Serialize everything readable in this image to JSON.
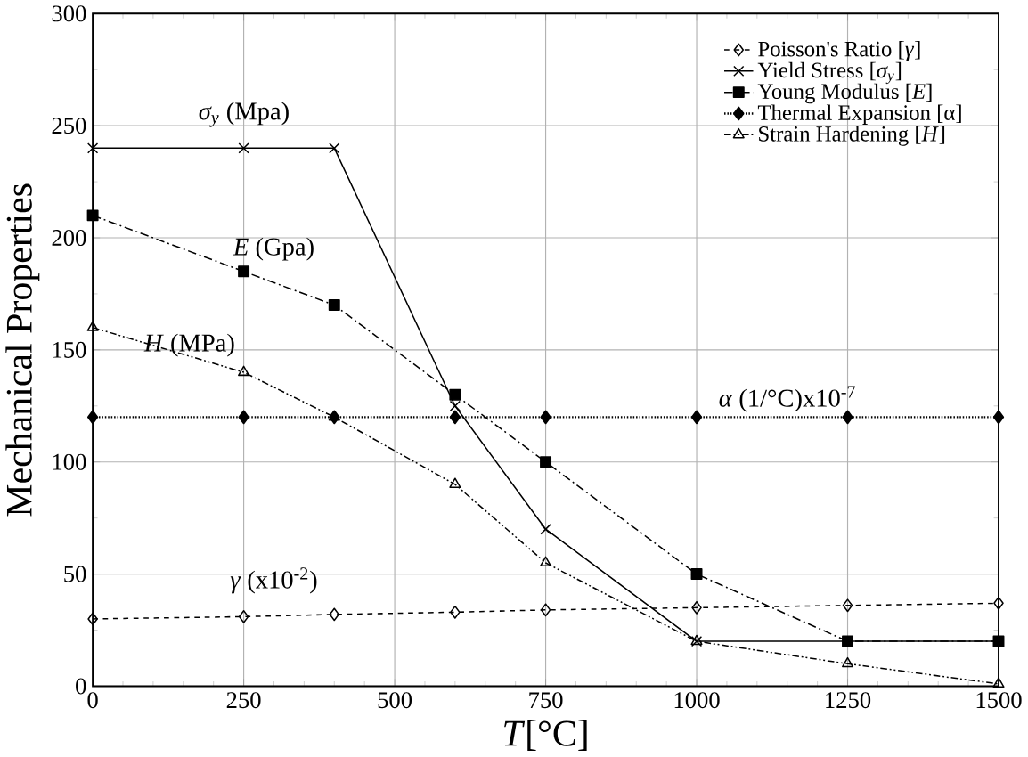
{
  "chart_data": {
    "type": "line",
    "xlabel": "*T*[°C]",
    "ylabel": "Mechanical Properties",
    "x": [
      0,
      250,
      400,
      600,
      750,
      1000,
      1250,
      1500
    ],
    "series": [
      {
        "name": "Poisson's Ratio [*γ*]",
        "color": "#000000",
        "marker": "diamond",
        "line_style": "dashed",
        "values": [
          30,
          31,
          32,
          33,
          34,
          35,
          36,
          37
        ]
      },
      {
        "name": "Yield Stress [*σ$_{y}$*]",
        "color": "#000000",
        "marker": "cross",
        "line_style": "solid",
        "values": [
          240,
          240,
          240,
          125,
          70,
          20,
          20,
          20
        ]
      },
      {
        "name": "Young Modulus [*E*]",
        "color": "#000000",
        "marker": "square",
        "line_style": "dashdot",
        "values": [
          210,
          185,
          170,
          130,
          100,
          50,
          20,
          20
        ]
      },
      {
        "name": "Thermal Expansion [α]",
        "color": "#000000",
        "marker": "diamond_filled",
        "line_style": "dotted",
        "values": [
          120,
          120,
          120,
          120,
          120,
          120,
          120,
          120
        ]
      },
      {
        "name": "Strain Hardening [*H*]",
        "color": "#000000",
        "marker": "triangle",
        "line_style": "dashdotdot",
        "values": [
          160,
          140,
          120,
          90,
          55,
          20,
          10,
          1
        ]
      }
    ],
    "annotations": [
      "*σ$_{y}$* (Mpa)",
      "*E* (Gpa)",
      "*H* (MPa)",
      "*α* (1/°C)x10$^{-7}$",
      "*γ* (x10$^{-2}$)"
    ],
    "xlim": [
      0,
      1500
    ],
    "xticks": [
      0,
      250,
      500,
      750,
      1000,
      1250,
      1500
    ],
    "ylim": [
      0,
      300
    ],
    "yticks": [
      0,
      50,
      100,
      150,
      200,
      250,
      300
    ],
    "grid": true,
    "legend": "top right"
  }
}
